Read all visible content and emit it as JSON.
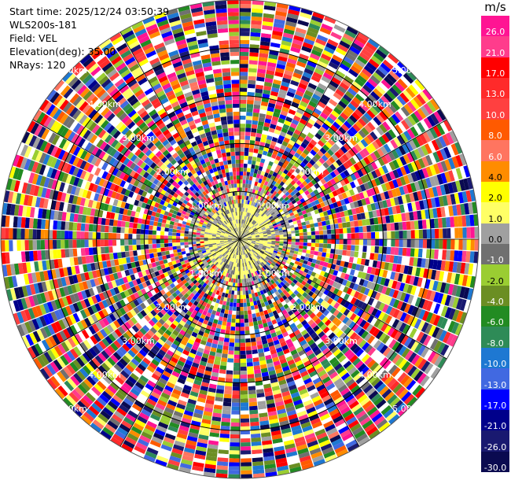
{
  "info": {
    "start_time": "Start time: 2025/12/24 03:50:39",
    "instrument": "WLS200s-181",
    "field": "Field: VEL",
    "elevation": "Elevation(deg): 35.00",
    "nrays": "NRays: 120"
  },
  "colorbar": {
    "unit": "m/s",
    "levels": [
      "26.0",
      "21.0",
      "17.0",
      "13.0",
      "10.0",
      "8.0",
      "6.0",
      "4.0",
      "2.0",
      "1.0",
      "0.0",
      "-1.0",
      "-2.0",
      "-4.0",
      "-6.0",
      "-8.0",
      "-10.0",
      "-13.0",
      "-17.0",
      "-21.0",
      "-26.0",
      "-30.0"
    ],
    "colors": [
      "#ff1493",
      "#ff3c8c",
      "#ff0000",
      "#ff2a2a",
      "#ff4040",
      "#ff5a00",
      "#ff7560",
      "#ff8c00",
      "#ffff00",
      "#ffff66",
      "#a0a0a0",
      "#707070",
      "#9acd32",
      "#6b8e23",
      "#228b22",
      "#2e8b57",
      "#1e78d2",
      "#4169e1",
      "#0000ff",
      "#00008b",
      "#191970",
      "#0a0a50"
    ]
  },
  "chart_data": {
    "type": "heatmap",
    "projection": "polar PPI",
    "field": "VEL",
    "nrays": 120,
    "value_range": [
      -30,
      30
    ],
    "range_rings_km": [
      1,
      2,
      3,
      4,
      5
    ],
    "ring_labels": [
      "1.00km",
      "2.00km",
      "3.00km",
      "4.00km",
      "5.00km"
    ],
    "inner_region_km": 1.0,
    "inner_values": "near 0 to +4 (yellow/green/grey)",
    "outer_values": "mixed noise across full range"
  }
}
